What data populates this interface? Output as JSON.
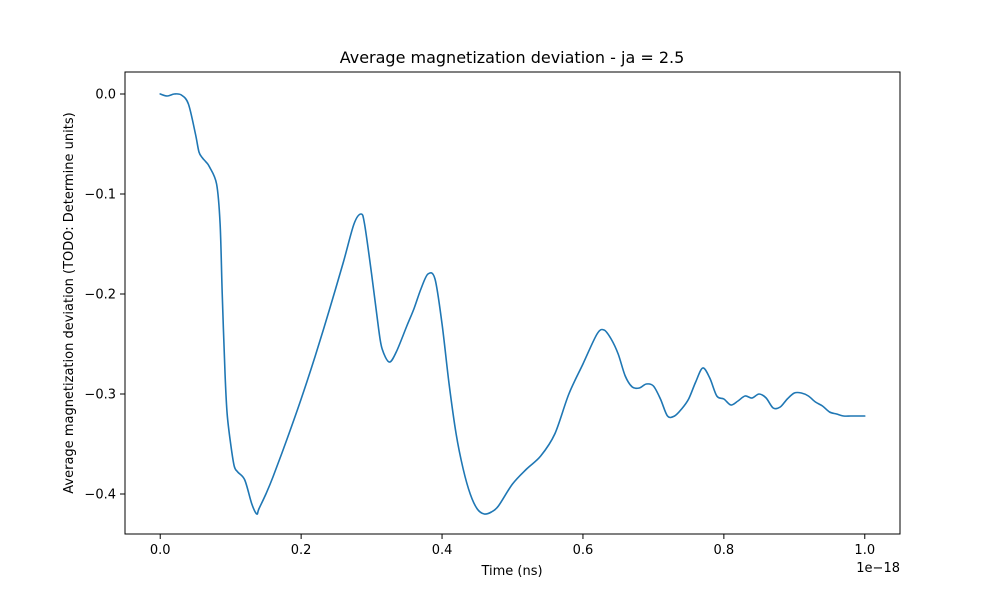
{
  "chart_data": {
    "type": "line",
    "title": "Average magnetization deviation - ja = 2.5",
    "xlabel": "Time (ns)",
    "ylabel": "Average magnetization deviation (TODO: Determine units)",
    "x_offset_text": "1e−18",
    "xlim": [
      -0.05,
      1.05
    ],
    "ylim": [
      -0.44,
      0.022
    ],
    "xticks": [
      0.0,
      0.2,
      0.4,
      0.6,
      0.8,
      1.0
    ],
    "xtick_labels": [
      "0.0",
      "0.2",
      "0.4",
      "0.6",
      "0.8",
      "1.0"
    ],
    "yticks": [
      0.0,
      -0.1,
      -0.2,
      -0.3,
      -0.4
    ],
    "ytick_labels": [
      "0.0",
      "−0.1",
      "−0.2",
      "−0.3",
      "−0.4"
    ],
    "grid": false,
    "colors": {
      "line": "#1f77b4"
    },
    "series": [
      {
        "x": [
          0.0,
          0.01,
          0.02,
          0.03,
          0.04,
          0.05,
          0.055,
          0.06,
          0.065,
          0.07,
          0.08,
          0.085,
          0.088,
          0.092,
          0.095,
          0.1,
          0.105,
          0.11,
          0.12,
          0.13,
          0.137,
          0.14,
          0.15,
          0.16,
          0.18,
          0.2,
          0.22,
          0.24,
          0.26,
          0.275,
          0.285,
          0.29,
          0.3,
          0.31,
          0.315,
          0.325,
          0.335,
          0.35,
          0.36,
          0.37,
          0.38,
          0.39,
          0.4,
          0.41,
          0.42,
          0.43,
          0.44,
          0.45,
          0.46,
          0.47,
          0.48,
          0.5,
          0.52,
          0.54,
          0.56,
          0.58,
          0.6,
          0.62,
          0.63,
          0.64,
          0.65,
          0.66,
          0.67,
          0.68,
          0.69,
          0.7,
          0.71,
          0.72,
          0.73,
          0.74,
          0.75,
          0.76,
          0.77,
          0.78,
          0.79,
          0.8,
          0.81,
          0.82,
          0.83,
          0.84,
          0.85,
          0.86,
          0.87,
          0.88,
          0.89,
          0.9,
          0.91,
          0.92,
          0.93,
          0.94,
          0.95,
          0.96,
          0.97,
          0.98,
          0.99,
          1.0
        ],
        "values": [
          0.0,
          -0.002,
          0.0,
          -0.001,
          -0.01,
          -0.04,
          -0.058,
          -0.064,
          -0.068,
          -0.073,
          -0.09,
          -0.13,
          -0.2,
          -0.28,
          -0.32,
          -0.35,
          -0.372,
          -0.378,
          -0.386,
          -0.41,
          -0.42,
          -0.415,
          -0.4,
          -0.383,
          -0.345,
          -0.305,
          -0.262,
          -0.216,
          -0.168,
          -0.13,
          -0.12,
          -0.13,
          -0.18,
          -0.235,
          -0.255,
          -0.268,
          -0.258,
          -0.232,
          -0.215,
          -0.195,
          -0.18,
          -0.185,
          -0.23,
          -0.29,
          -0.34,
          -0.375,
          -0.4,
          -0.415,
          -0.42,
          -0.418,
          -0.412,
          -0.39,
          -0.375,
          -0.362,
          -0.34,
          -0.3,
          -0.27,
          -0.24,
          -0.236,
          -0.245,
          -0.26,
          -0.282,
          -0.293,
          -0.294,
          -0.29,
          -0.292,
          -0.305,
          -0.322,
          -0.322,
          -0.315,
          -0.305,
          -0.288,
          -0.274,
          -0.284,
          -0.302,
          -0.305,
          -0.311,
          -0.307,
          -0.302,
          -0.304,
          -0.3,
          -0.304,
          -0.314,
          -0.313,
          -0.305,
          -0.299,
          -0.299,
          -0.302,
          -0.308,
          -0.312,
          -0.318,
          -0.32,
          -0.322,
          -0.322,
          -0.322,
          -0.322
        ]
      }
    ]
  }
}
